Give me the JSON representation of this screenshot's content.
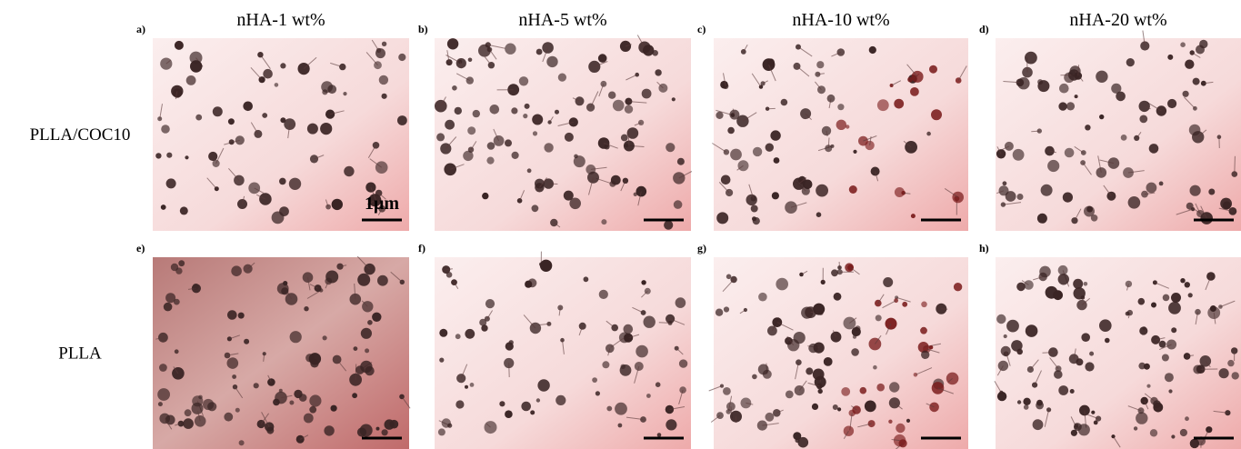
{
  "columns": [
    "nHA-1 wt%",
    "nHA-5 wt%",
    "nHA-10 wt%",
    "nHA-20 wt%"
  ],
  "rows": [
    "PLLA/COC10",
    "PLLA"
  ],
  "panels": [
    "a)",
    "b)",
    "c)",
    "d)",
    "e)",
    "f)",
    "g)",
    "h)"
  ],
  "scale_label": "1μm"
}
